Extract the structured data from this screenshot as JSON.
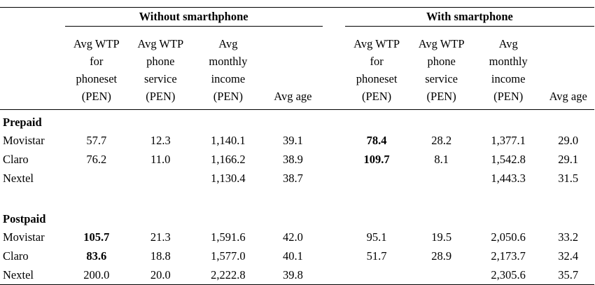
{
  "groups": {
    "without": "Without smarthphone",
    "with": "With smartphone"
  },
  "columns": {
    "without": [
      [
        "Avg WTP",
        "for",
        "phoneset",
        "(PEN)"
      ],
      [
        "Avg WTP",
        "phone",
        "service",
        "(PEN)"
      ],
      [
        "Avg",
        "monthly",
        "income",
        "(PEN)"
      ],
      [
        "Avg age"
      ]
    ],
    "with": [
      [
        "Avg WTP",
        "for",
        "phoneset",
        "(PEN)"
      ],
      [
        "Avg WTP",
        "phone",
        "service",
        "(PEN)"
      ],
      [
        "Avg",
        "monthly",
        "income",
        "(PEN)"
      ],
      [
        "Avg age"
      ]
    ]
  },
  "sections": [
    {
      "title": "Prepaid",
      "rows": [
        {
          "label": "Movistar",
          "without": [
            "57.7",
            "12.3",
            "1,140.1",
            "39.1"
          ],
          "with": [
            "78.4",
            "28.2",
            "1,377.1",
            "29.0"
          ],
          "bold_without": [
            false,
            false,
            false,
            false
          ],
          "bold_with": [
            true,
            false,
            false,
            false
          ]
        },
        {
          "label": "Claro",
          "without": [
            "76.2",
            "11.0",
            "1,166.2",
            "38.9"
          ],
          "with": [
            "109.7",
            "8.1",
            "1,542.8",
            "29.1"
          ],
          "bold_without": [
            false,
            false,
            false,
            false
          ],
          "bold_with": [
            true,
            false,
            false,
            false
          ]
        },
        {
          "label": "Nextel",
          "without": [
            "",
            "",
            "1,130.4",
            "38.7"
          ],
          "with": [
            "",
            "",
            "1,443.3",
            "31.5"
          ],
          "bold_without": [
            false,
            false,
            false,
            false
          ],
          "bold_with": [
            false,
            false,
            false,
            false
          ]
        }
      ]
    },
    {
      "title": "Postpaid",
      "rows": [
        {
          "label": "Movistar",
          "without": [
            "105.7",
            "21.3",
            "1,591.6",
            "42.0"
          ],
          "with": [
            "95.1",
            "19.5",
            "2,050.6",
            "33.2"
          ],
          "bold_without": [
            true,
            false,
            false,
            false
          ],
          "bold_with": [
            false,
            false,
            false,
            false
          ]
        },
        {
          "label": "Claro",
          "without": [
            "83.6",
            "18.8",
            "1,577.0",
            "40.1"
          ],
          "with": [
            "51.7",
            "28.9",
            "2,173.7",
            "32.4"
          ],
          "bold_without": [
            true,
            false,
            false,
            false
          ],
          "bold_with": [
            false,
            false,
            false,
            false
          ]
        },
        {
          "label": "Nextel",
          "without": [
            "200.0",
            "20.0",
            "2,222.8",
            "39.8"
          ],
          "with": [
            "",
            "",
            "2,305.6",
            "35.7"
          ],
          "bold_without": [
            false,
            false,
            false,
            false
          ],
          "bold_with": [
            false,
            false,
            false,
            false
          ]
        }
      ]
    }
  ]
}
